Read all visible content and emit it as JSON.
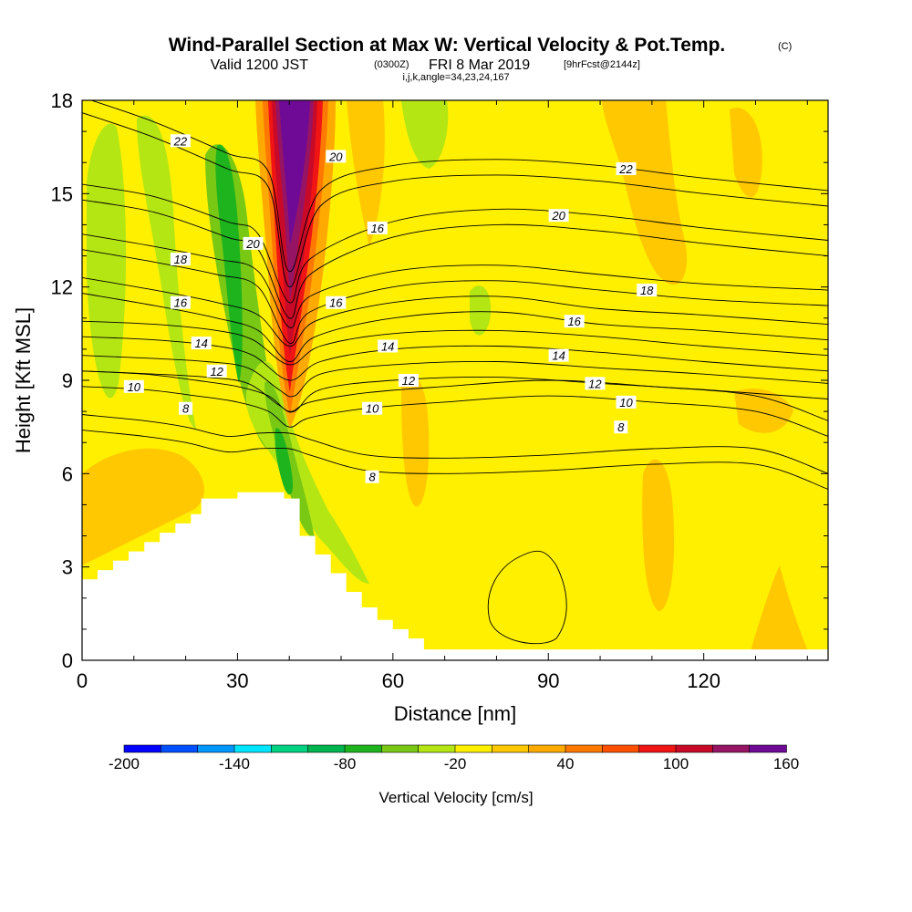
{
  "title": {
    "main": "Wind-Parallel Section at Max W: Vertical Velocity & Pot.Temp.",
    "copyright": "(C)",
    "valid_prefix": "Valid 1200 JST",
    "utc": "(0300Z)",
    "date": "FRI 8 Mar 2019",
    "forecast": "[9hrFcst@2144z]",
    "indices": "i,j,k,angle=34,23,24,167"
  },
  "chart_data": {
    "type": "heatmap",
    "title": "Wind-Parallel Section at Max W: Vertical Velocity & Pot.Temp.",
    "xlabel": "Distance [nm]",
    "ylabel": "Height [Kft MSL]",
    "xlim": [
      0,
      144
    ],
    "ylim": [
      0,
      18
    ],
    "x_ticks": [
      0,
      30,
      60,
      90,
      120
    ],
    "x_tick_labels": [
      "0",
      "30",
      "60",
      "90",
      "120"
    ],
    "y_ticks": [
      0,
      3,
      6,
      9,
      12,
      15,
      18
    ],
    "y_tick_labels": [
      "0",
      "3",
      "6",
      "9",
      "12",
      "15",
      "18"
    ],
    "colorbar": {
      "title": "Vertical Velocity [cm/s]",
      "min": -200,
      "max": 160,
      "step": 20,
      "labels": [
        "-200",
        "-140",
        "-80",
        "-20",
        "40",
        "100",
        "160"
      ],
      "colors": [
        "#0000ff",
        "#0050ff",
        "#0096ff",
        "#00e6ff",
        "#00d282",
        "#00b450",
        "#1eb41e",
        "#78c814",
        "#b4e614",
        "#fff000",
        "#ffc800",
        "#ffaa00",
        "#ff7800",
        "#ff5000",
        "#f01414",
        "#c80a28",
        "#961464",
        "#6e0a96"
      ]
    },
    "field_description": {
      "background_value_band": "-20 to 0",
      "updraft_core_max_x": 41,
      "updraft_core_top_value": 160,
      "downdraft_band_min_value": -80
    },
    "theta_contours": [
      {
        "label": "8",
        "points": [
          [
            0,
            7.4
          ],
          [
            12,
            7.2
          ],
          [
            20,
            7.0
          ],
          [
            28,
            6.7
          ],
          [
            34,
            6.8
          ],
          [
            40,
            6.8
          ],
          [
            44,
            6.6
          ],
          [
            55,
            6.1
          ],
          [
            70,
            6.0
          ],
          [
            90,
            6.1
          ],
          [
            110,
            6.3
          ],
          [
            130,
            6.3
          ],
          [
            144,
            5.5
          ]
        ]
      },
      {
        "label": "10",
        "points": [
          [
            0,
            8.8
          ],
          [
            12,
            8.7
          ],
          [
            22,
            8.5
          ],
          [
            30,
            8.3
          ],
          [
            36,
            8.0
          ],
          [
            40,
            7.5
          ],
          [
            44,
            7.8
          ],
          [
            55,
            8.1
          ],
          [
            70,
            8.3
          ],
          [
            90,
            8.5
          ],
          [
            110,
            8.3
          ],
          [
            130,
            8.0
          ],
          [
            144,
            7.2
          ]
        ]
      },
      {
        "label": "12",
        "points": [
          [
            0,
            9.3
          ],
          [
            14,
            9.2
          ],
          [
            24,
            9.1
          ],
          [
            32,
            8.9
          ],
          [
            38,
            8.2
          ],
          [
            41,
            8.0
          ],
          [
            46,
            8.7
          ],
          [
            60,
            9.0
          ],
          [
            80,
            9.1
          ],
          [
            100,
            8.9
          ],
          [
            120,
            8.7
          ],
          [
            144,
            8.4
          ]
        ]
      },
      {
        "label": "14",
        "points": [
          [
            0,
            10.4
          ],
          [
            14,
            10.3
          ],
          [
            26,
            10.1
          ],
          [
            33,
            9.8
          ],
          [
            40,
            9.0
          ],
          [
            46,
            9.6
          ],
          [
            60,
            10.0
          ],
          [
            80,
            10.1
          ],
          [
            100,
            9.9
          ],
          [
            120,
            9.6
          ],
          [
            144,
            9.3
          ]
        ]
      },
      {
        "label": "16",
        "points": [
          [
            0,
            11.8
          ],
          [
            14,
            11.4
          ],
          [
            26,
            11.0
          ],
          [
            34,
            10.6
          ],
          [
            40,
            9.6
          ],
          [
            45,
            10.4
          ],
          [
            60,
            11.0
          ],
          [
            80,
            11.2
          ],
          [
            100,
            10.8
          ],
          [
            120,
            10.6
          ],
          [
            144,
            10.3
          ]
        ]
      },
      {
        "label": "18",
        "points": [
          [
            0,
            13.2
          ],
          [
            14,
            12.8
          ],
          [
            26,
            12.4
          ],
          [
            34,
            12.0
          ],
          [
            40,
            10.2
          ],
          [
            44,
            11.2
          ],
          [
            60,
            12.0
          ],
          [
            80,
            12.2
          ],
          [
            100,
            11.9
          ],
          [
            120,
            11.6
          ],
          [
            144,
            11.4
          ]
        ]
      },
      {
        "label": "20",
        "points": [
          [
            0,
            14.8
          ],
          [
            14,
            14.4
          ],
          [
            28,
            13.6
          ],
          [
            34,
            13.2
          ],
          [
            40,
            11.0
          ],
          [
            44,
            12.4
          ],
          [
            60,
            13.6
          ],
          [
            80,
            14.0
          ],
          [
            100,
            13.8
          ],
          [
            120,
            13.4
          ],
          [
            144,
            13.0
          ]
        ]
      },
      {
        "label": "22",
        "points": [
          [
            0,
            17.6
          ],
          [
            14,
            16.8
          ],
          [
            28,
            15.8
          ],
          [
            36,
            15.2
          ],
          [
            40,
            12.0
          ],
          [
            46,
            14.6
          ],
          [
            60,
            15.4
          ],
          [
            80,
            15.6
          ],
          [
            100,
            15.4
          ],
          [
            120,
            15.0
          ],
          [
            144,
            14.6
          ]
        ]
      }
    ],
    "contour_labels": [
      {
        "text": "22",
        "x": 19,
        "y": 16.7
      },
      {
        "text": "20",
        "x": 49,
        "y": 16.2
      },
      {
        "text": "22",
        "x": 105,
        "y": 15.8
      },
      {
        "text": "20",
        "x": 92,
        "y": 14.3
      },
      {
        "text": "16",
        "x": 57,
        "y": 13.9
      },
      {
        "text": "20",
        "x": 33,
        "y": 13.4
      },
      {
        "text": "18",
        "x": 19,
        "y": 12.9
      },
      {
        "text": "18",
        "x": 109,
        "y": 11.9
      },
      {
        "text": "16",
        "x": 19,
        "y": 11.5
      },
      {
        "text": "16",
        "x": 49,
        "y": 11.5
      },
      {
        "text": "16",
        "x": 95,
        "y": 10.9
      },
      {
        "text": "14",
        "x": 23,
        "y": 10.2
      },
      {
        "text": "14",
        "x": 59,
        "y": 10.1
      },
      {
        "text": "14",
        "x": 92,
        "y": 9.8
      },
      {
        "text": "12",
        "x": 26,
        "y": 9.3
      },
      {
        "text": "12",
        "x": 63,
        "y": 9.0
      },
      {
        "text": "12",
        "x": 99,
        "y": 8.9
      },
      {
        "text": "10",
        "x": 10,
        "y": 8.8
      },
      {
        "text": "10",
        "x": 56,
        "y": 8.1
      },
      {
        "text": "10",
        "x": 105,
        "y": 8.3
      },
      {
        "text": "8",
        "x": 20,
        "y": 8.1
      },
      {
        "text": "8",
        "x": 104,
        "y": 7.5
      },
      {
        "text": "8",
        "x": 56,
        "y": 5.9
      }
    ],
    "terrain": [
      [
        0,
        2.6
      ],
      [
        3,
        2.6
      ],
      [
        3,
        2.9
      ],
      [
        6,
        2.9
      ],
      [
        6,
        3.2
      ],
      [
        9,
        3.2
      ],
      [
        9,
        3.5
      ],
      [
        12,
        3.5
      ],
      [
        12,
        3.8
      ],
      [
        15,
        3.8
      ],
      [
        15,
        4.1
      ],
      [
        18,
        4.1
      ],
      [
        18,
        4.4
      ],
      [
        21,
        4.4
      ],
      [
        21,
        4.7
      ],
      [
        23,
        4.7
      ],
      [
        23,
        5.2
      ],
      [
        30,
        5.2
      ],
      [
        30,
        5.4
      ],
      [
        39,
        5.4
      ],
      [
        39,
        5.2
      ],
      [
        42,
        5.2
      ],
      [
        42,
        4.0
      ],
      [
        45,
        4.0
      ],
      [
        45,
        3.4
      ],
      [
        48,
        3.4
      ],
      [
        48,
        2.8
      ],
      [
        51,
        2.8
      ],
      [
        51,
        2.2
      ],
      [
        54,
        2.2
      ],
      [
        54,
        1.7
      ],
      [
        57,
        1.7
      ],
      [
        57,
        1.3
      ],
      [
        60,
        1.3
      ],
      [
        60,
        1.0
      ],
      [
        63,
        1.0
      ],
      [
        63,
        0.7
      ],
      [
        66,
        0.7
      ],
      [
        66,
        0.35
      ],
      [
        144,
        0.35
      ]
    ]
  }
}
